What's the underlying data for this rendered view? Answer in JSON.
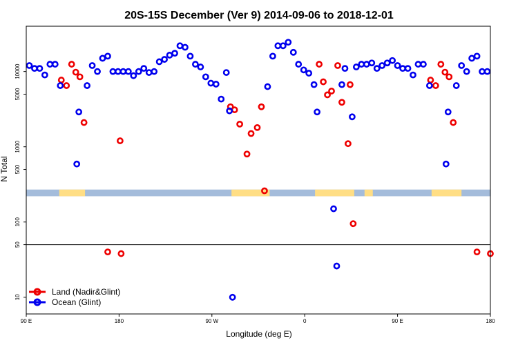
{
  "chart_data": {
    "type": "scatter",
    "title": "20S-15S December (Ver 9)   2014-09-06 to 2018-12-01",
    "xlabel": "Longitude (deg E)",
    "ylabel": "N Total",
    "yscale": "log",
    "ylim": [
      6,
      40000
    ],
    "x_ticks": [
      {
        "value": 0,
        "label": "90 E"
      },
      {
        "value": 90,
        "label": "180"
      },
      {
        "value": 180,
        "label": "90 W"
      },
      {
        "value": 270,
        "label": "0"
      },
      {
        "value": 360,
        "label": "90 E"
      },
      {
        "value": 450,
        "label": "180"
      }
    ],
    "xlim": [
      0,
      450
    ],
    "y_ticks": [
      {
        "value": 10,
        "label": "10"
      },
      {
        "value": 50,
        "label": "50"
      },
      {
        "value": 100,
        "label": "100"
      },
      {
        "value": 500,
        "label": "500"
      },
      {
        "value": 1000,
        "label": "1000"
      },
      {
        "value": 5000,
        "label": "5000"
      },
      {
        "value": 10000,
        "label": "10000"
      }
    ],
    "reference_line": {
      "value": 50,
      "label": "50"
    },
    "land_mask_band": {
      "y_range": [
        220,
        270
      ],
      "ocean_color": "#A4BCDB",
      "land_color": "#FFDE85",
      "land_x_ranges": [
        [
          32,
          57
        ],
        [
          199,
          236
        ],
        [
          280,
          318
        ],
        [
          328,
          336
        ],
        [
          393,
          422
        ]
      ]
    },
    "series": [
      {
        "name": "Land (Nadir&Glint)",
        "color": "#EE0000",
        "points": [
          [
            34,
            7700
          ],
          [
            39,
            6500
          ],
          [
            44,
            12500
          ],
          [
            48,
            9800
          ],
          [
            52,
            8500
          ],
          [
            56,
            2100
          ],
          [
            79,
            40
          ],
          [
            91,
            1200
          ],
          [
            92,
            38
          ],
          [
            198,
            3400
          ],
          [
            202,
            3100
          ],
          [
            207,
            2000
          ],
          [
            214,
            800
          ],
          [
            218,
            1500
          ],
          [
            224,
            1800
          ],
          [
            228,
            3400
          ],
          [
            231,
            260
          ],
          [
            284,
            12500
          ],
          [
            288,
            7300
          ],
          [
            292,
            4900
          ],
          [
            296,
            5500
          ],
          [
            302,
            12000
          ],
          [
            306,
            3900
          ],
          [
            312,
            1100
          ],
          [
            314,
            6700
          ],
          [
            317,
            95
          ],
          [
            392,
            7700
          ],
          [
            397,
            6500
          ],
          [
            402,
            12500
          ],
          [
            406,
            9800
          ],
          [
            410,
            8500
          ],
          [
            414,
            2100
          ],
          [
            437,
            40
          ],
          [
            450,
            38
          ]
        ]
      },
      {
        "name": "Ocean (Glint)",
        "color": "#0000EE",
        "points": [
          [
            3,
            12000
          ],
          [
            8,
            11000
          ],
          [
            13,
            11000
          ],
          [
            18,
            9000
          ],
          [
            23,
            12500
          ],
          [
            28,
            12500
          ],
          [
            33,
            6500
          ],
          [
            49,
            590
          ],
          [
            51,
            2900
          ],
          [
            59,
            6500
          ],
          [
            64,
            12000
          ],
          [
            69,
            10000
          ],
          [
            74,
            15000
          ],
          [
            79,
            16000
          ],
          [
            84,
            10000
          ],
          [
            89,
            10000
          ],
          [
            94,
            10000
          ],
          [
            99,
            10000
          ],
          [
            104,
            8800
          ],
          [
            109,
            10000
          ],
          [
            114,
            11000
          ],
          [
            119,
            9700
          ],
          [
            124,
            10000
          ],
          [
            129,
            13500
          ],
          [
            134,
            14500
          ],
          [
            139,
            16500
          ],
          [
            144,
            17500
          ],
          [
            149,
            22000
          ],
          [
            154,
            21000
          ],
          [
            159,
            16000
          ],
          [
            164,
            12500
          ],
          [
            169,
            11500
          ],
          [
            174,
            8500
          ],
          [
            179,
            7000
          ],
          [
            184,
            6800
          ],
          [
            189,
            4300
          ],
          [
            194,
            9700
          ],
          [
            197,
            3000
          ],
          [
            200,
            10
          ],
          [
            234,
            6300
          ],
          [
            239,
            16000
          ],
          [
            244,
            22000
          ],
          [
            249,
            22000
          ],
          [
            254,
            24500
          ],
          [
            259,
            18000
          ],
          [
            264,
            12500
          ],
          [
            269,
            10500
          ],
          [
            274,
            9500
          ],
          [
            279,
            6700
          ],
          [
            282,
            2900
          ],
          [
            298,
            150
          ],
          [
            301,
            26
          ],
          [
            306,
            6700
          ],
          [
            309,
            11000
          ],
          [
            316,
            2500
          ],
          [
            320,
            11500
          ],
          [
            325,
            12500
          ],
          [
            330,
            12500
          ],
          [
            335,
            13000
          ],
          [
            340,
            11000
          ],
          [
            345,
            12000
          ],
          [
            350,
            13000
          ],
          [
            355,
            14000
          ],
          [
            360,
            12000
          ],
          [
            365,
            11000
          ],
          [
            370,
            11000
          ],
          [
            375,
            9000
          ],
          [
            380,
            12500
          ],
          [
            385,
            12500
          ],
          [
            391,
            6500
          ],
          [
            407,
            590
          ],
          [
            409,
            2900
          ],
          [
            417,
            6500
          ],
          [
            422,
            12000
          ],
          [
            427,
            10000
          ],
          [
            432,
            15000
          ],
          [
            437,
            16000
          ],
          [
            442,
            10000
          ],
          [
            447,
            10000
          ]
        ]
      }
    ]
  },
  "legend": {
    "items": [
      {
        "label": "Land (Nadir&Glint)",
        "color": "#EE0000"
      },
      {
        "label": "Ocean (Glint)",
        "color": "#0000EE"
      }
    ]
  }
}
